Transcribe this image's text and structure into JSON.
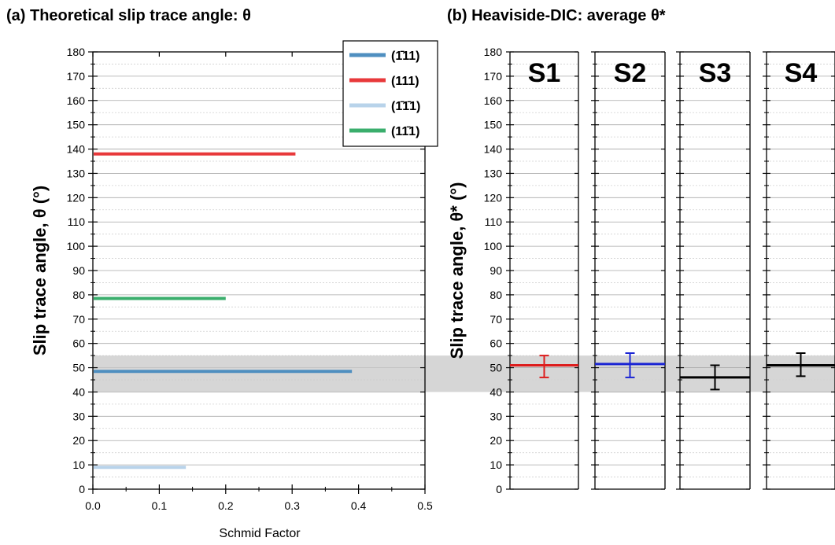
{
  "chart_data": [
    {
      "type": "bar",
      "title": "(a) Theoretical slip trace angle: θ",
      "xlabel": "Schmid Factor",
      "ylabel": "Slip trace angle, θ (°)",
      "xlim": [
        0,
        0.5
      ],
      "ylim": [
        0,
        180
      ],
      "xticks": [
        "0.0",
        "0.1",
        "0.2",
        "0.3",
        "0.4",
        "0.5"
      ],
      "yticks": [
        "0",
        "10",
        "20",
        "30",
        "40",
        "50",
        "60",
        "70",
        "80",
        "90",
        "100",
        "110",
        "120",
        "130",
        "140",
        "150",
        "160",
        "170",
        "180"
      ],
      "grid": true,
      "legend_position": "top-right",
      "shaded_band": [
        40,
        55
      ],
      "series": [
        {
          "name": "(1̄11)",
          "color": "#4f8fc0",
          "angle": 48.5,
          "schmid": 0.39
        },
        {
          "name": "(111)",
          "color": "#e8393b",
          "angle": 138,
          "schmid": 0.305
        },
        {
          "name": "(1̄1̄1)",
          "color": "#b8d3ea",
          "angle": 9,
          "schmid": 0.14
        },
        {
          "name": "(11̄1)",
          "color": "#3aae6c",
          "angle": 78.5,
          "schmid": 0.2
        }
      ]
    },
    {
      "type": "scatter",
      "title": "(b) Heaviside-DIC: average θ*",
      "ylabel": "Slip trace angle, θ* (°)",
      "ylim": [
        0,
        180
      ],
      "yticks": [
        "0",
        "10",
        "20",
        "30",
        "40",
        "50",
        "60",
        "70",
        "80",
        "90",
        "100",
        "110",
        "120",
        "130",
        "140",
        "150",
        "160",
        "170",
        "180"
      ],
      "grid": true,
      "shaded_band": [
        40,
        55
      ],
      "samples": [
        {
          "name": "S1",
          "color": "#dd1c1c",
          "mean": 51,
          "low": 46,
          "high": 55
        },
        {
          "name": "S2",
          "color": "#1a24d4",
          "mean": 51.5,
          "low": 46,
          "high": 56
        },
        {
          "name": "S3",
          "color": "#000000",
          "mean": 46,
          "low": 41,
          "high": 51
        },
        {
          "name": "S4",
          "color": "#000000",
          "mean": 51,
          "low": 46.5,
          "high": 56
        }
      ]
    }
  ]
}
